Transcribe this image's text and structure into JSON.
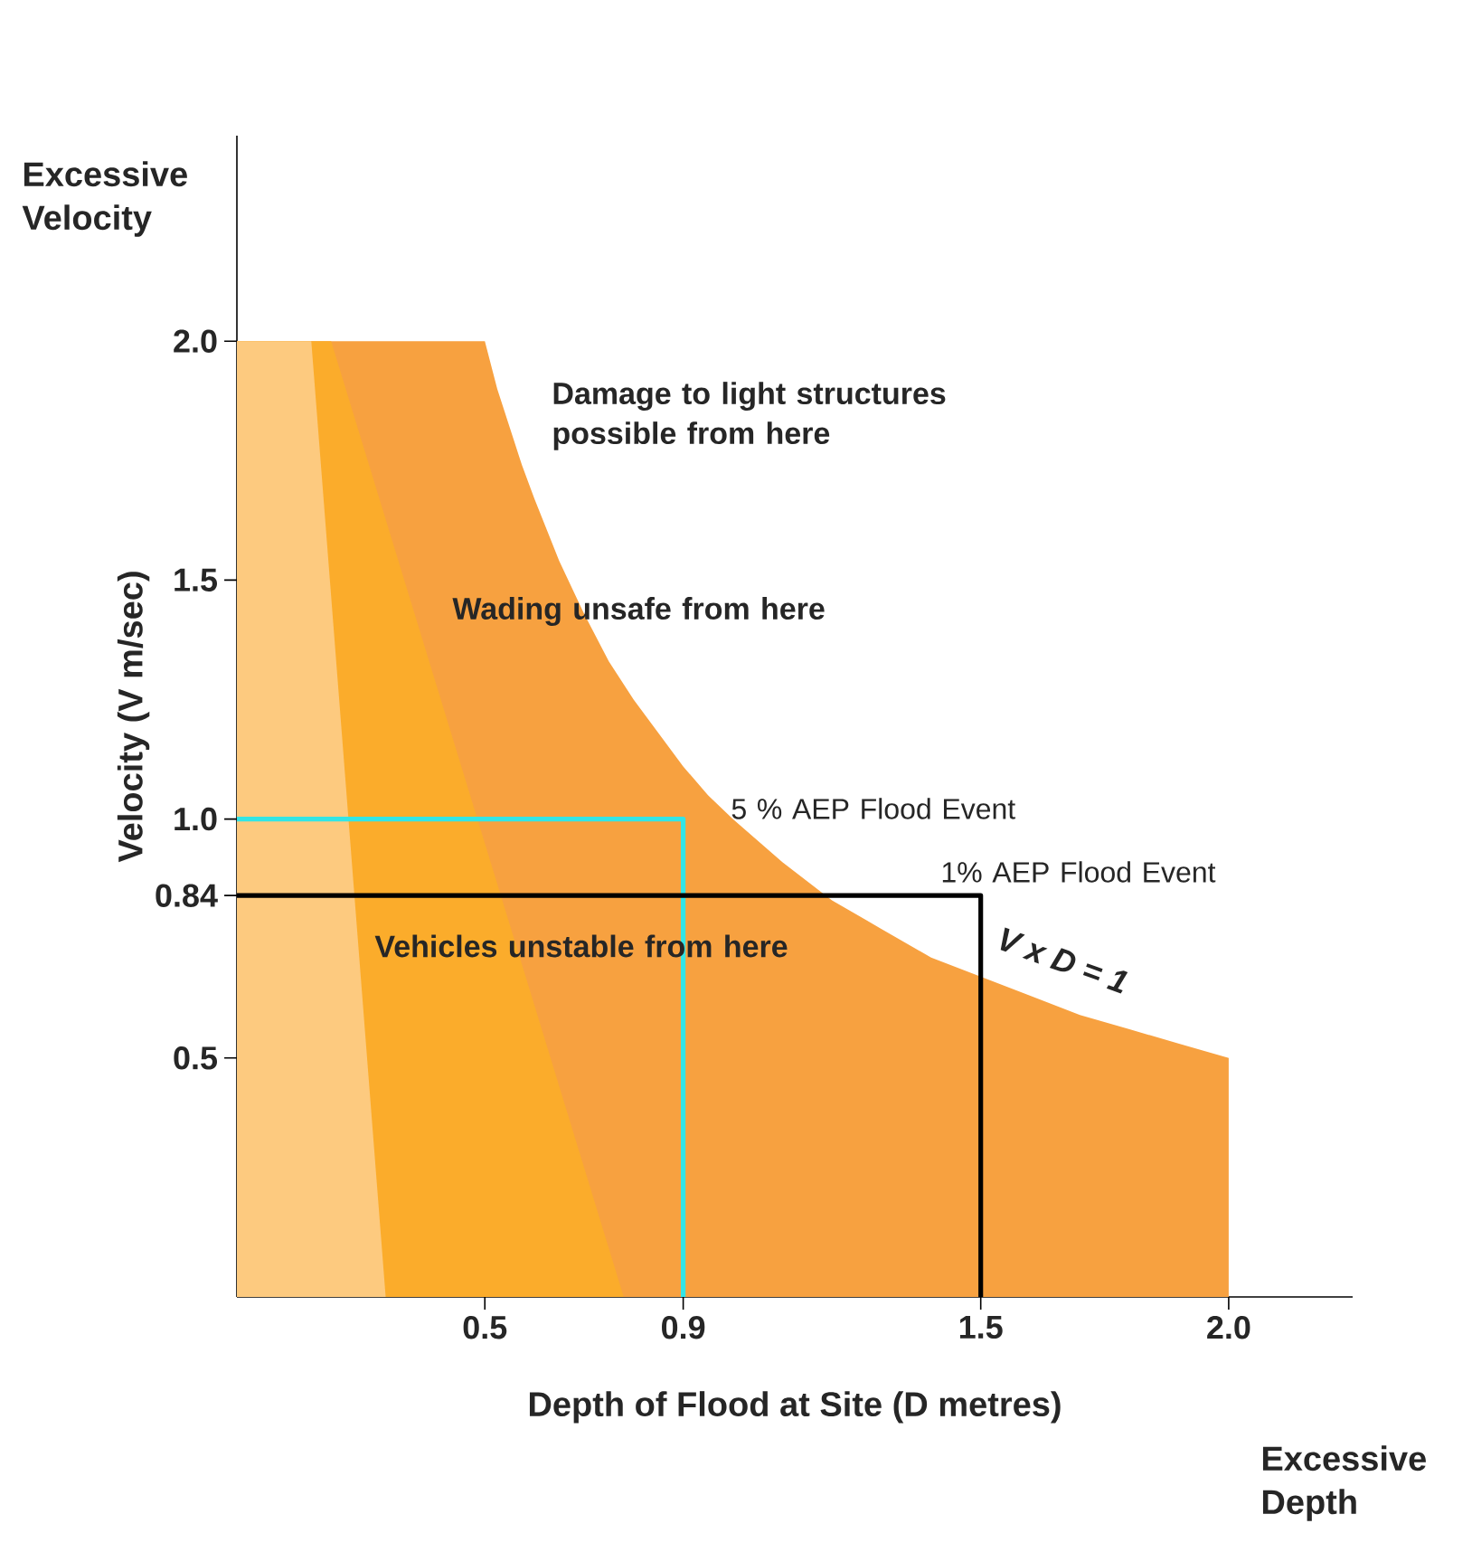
{
  "chart_data": {
    "type": "area",
    "xlabel": "Depth of Flood at Site (D metres)",
    "ylabel": "Velocity (V m/sec)",
    "xlim": [
      0,
      2.25
    ],
    "ylim": [
      0,
      2.43
    ],
    "xticks": [
      0.5,
      0.9,
      1.5,
      {
        "value": 2,
        "label": "2.0"
      }
    ],
    "yticks": [
      0.5,
      0.84,
      {
        "value": 1,
        "label": "1.0"
      },
      1.5,
      {
        "value": 2,
        "label": "2.0"
      }
    ],
    "grid": false,
    "series": [
      {
        "color": "#f7a140",
        "x": [
          0,
          0.5,
          0.525,
          0.55,
          0.575,
          0.6,
          0.65,
          0.7,
          0.75,
          0.8,
          0.85,
          0.9,
          0.95,
          1.0,
          1.1,
          1.2,
          1.3,
          1.4,
          1.5,
          1.6,
          1.7,
          1.8,
          1.9,
          2.0,
          2.0
        ],
        "values": [
          2,
          2,
          1.9,
          1.82,
          1.74,
          1.67,
          1.54,
          1.43,
          1.33,
          1.25,
          1.18,
          1.11,
          1.05,
          1.0,
          0.91,
          0.83,
          0.77,
          0.71,
          0.67,
          0.63,
          0.59,
          0.56,
          0.53,
          0.5,
          0
        ]
      },
      {
        "color": "#fbac2b",
        "x": [
          0,
          0.19,
          0.78
        ],
        "values": [
          2,
          2,
          0
        ]
      },
      {
        "color": "#fdca7f",
        "x": [
          0,
          0.15,
          0.3
        ],
        "values": [
          2,
          2,
          0
        ]
      },
      {
        "type": "line",
        "color": "#33e5e5",
        "x": [
          0,
          0.9,
          0.9
        ],
        "values": [
          1,
          1,
          0
        ]
      },
      {
        "type": "line",
        "color": "#000000",
        "x": [
          0,
          1.5,
          1.5
        ],
        "values": [
          0.84,
          0.84,
          0
        ]
      }
    ],
    "annotations": [
      "Damage to light structures possible from here",
      "Wading unsafe from here",
      "Vehicles unstable from here",
      "5 % AEP Flood Event",
      "1% AEP Flood Event",
      "V x D = 1",
      "Excessive Velocity",
      "Excessive Depth"
    ]
  }
}
